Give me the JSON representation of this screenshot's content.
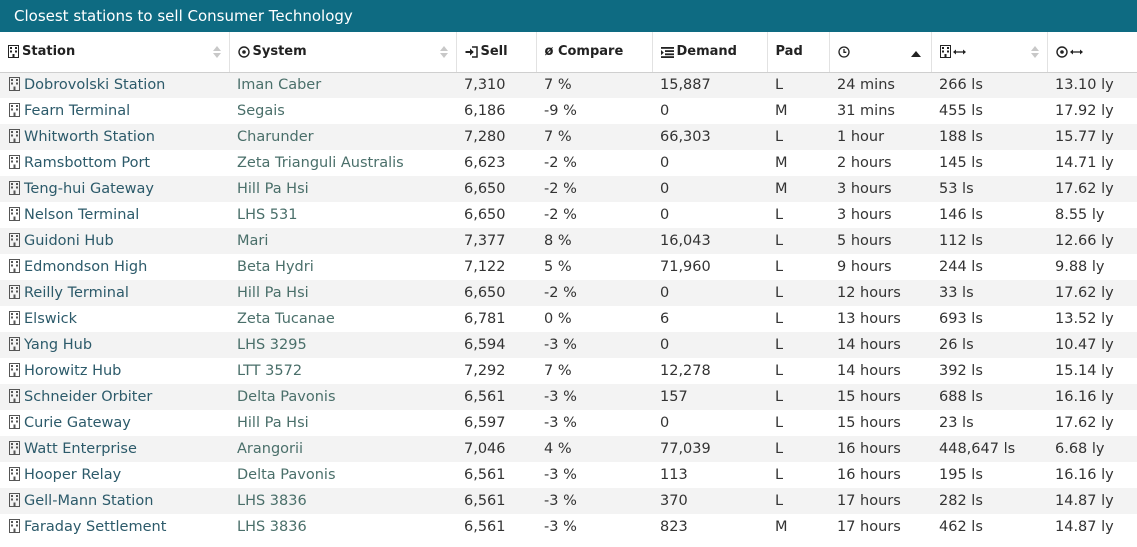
{
  "header": {
    "title": "Closest stations to sell Consumer Technology"
  },
  "icons": {
    "station": "building-icon",
    "system": "target-icon",
    "sell": "sign-in-icon",
    "demand": "list-icon",
    "age": "clock-icon",
    "distance_star": "building-arrow-icon",
    "distance_ly": "target-arrow-icon"
  },
  "columns": {
    "station": "Station",
    "system": "System",
    "sell": "Sell",
    "compare": "ø Compare",
    "demand": "Demand",
    "pad": "Pad"
  },
  "rows": [
    {
      "station": "Dobrovolski Station",
      "system": "Iman Caber",
      "sell": "7,310",
      "compare": "7 %",
      "demand": "15,887",
      "pad": "L",
      "age": "24 mins",
      "dist_star": "266 ls",
      "dist_ly": "13.10 ly"
    },
    {
      "station": "Fearn Terminal",
      "system": "Segais",
      "sell": "6,186",
      "compare": "-9 %",
      "demand": "0",
      "pad": "M",
      "age": "31 mins",
      "dist_star": "455 ls",
      "dist_ly": "17.92 ly"
    },
    {
      "station": "Whitworth Station",
      "system": "Charunder",
      "sell": "7,280",
      "compare": "7 %",
      "demand": "66,303",
      "pad": "L",
      "age": "1 hour",
      "dist_star": "188 ls",
      "dist_ly": "15.77 ly"
    },
    {
      "station": "Ramsbottom Port",
      "system": "Zeta Trianguli Australis",
      "sell": "6,623",
      "compare": "-2 %",
      "demand": "0",
      "pad": "M",
      "age": "2 hours",
      "dist_star": "145 ls",
      "dist_ly": "14.71 ly"
    },
    {
      "station": "Teng-hui Gateway",
      "system": "Hill Pa Hsi",
      "sell": "6,650",
      "compare": "-2 %",
      "demand": "0",
      "pad": "M",
      "age": "3 hours",
      "dist_star": "53 ls",
      "dist_ly": "17.62 ly"
    },
    {
      "station": "Nelson Terminal",
      "system": "LHS 531",
      "sell": "6,650",
      "compare": "-2 %",
      "demand": "0",
      "pad": "L",
      "age": "3 hours",
      "dist_star": "146 ls",
      "dist_ly": "8.55 ly"
    },
    {
      "station": "Guidoni Hub",
      "system": "Mari",
      "sell": "7,377",
      "compare": "8 %",
      "demand": "16,043",
      "pad": "L",
      "age": "5 hours",
      "dist_star": "112 ls",
      "dist_ly": "12.66 ly"
    },
    {
      "station": "Edmondson High",
      "system": "Beta Hydri",
      "sell": "7,122",
      "compare": "5 %",
      "demand": "71,960",
      "pad": "L",
      "age": "9 hours",
      "dist_star": "244 ls",
      "dist_ly": "9.88 ly"
    },
    {
      "station": "Reilly Terminal",
      "system": "Hill Pa Hsi",
      "sell": "6,650",
      "compare": "-2 %",
      "demand": "0",
      "pad": "L",
      "age": "12 hours",
      "dist_star": "33 ls",
      "dist_ly": "17.62 ly"
    },
    {
      "station": "Elswick",
      "system": "Zeta Tucanae",
      "sell": "6,781",
      "compare": "0 %",
      "demand": "6",
      "pad": "L",
      "age": "13 hours",
      "dist_star": "693 ls",
      "dist_ly": "13.52 ly"
    },
    {
      "station": "Yang Hub",
      "system": "LHS 3295",
      "sell": "6,594",
      "compare": "-3 %",
      "demand": "0",
      "pad": "L",
      "age": "14 hours",
      "dist_star": "26 ls",
      "dist_ly": "10.47 ly"
    },
    {
      "station": "Horowitz Hub",
      "system": "LTT 3572",
      "sell": "7,292",
      "compare": "7 %",
      "demand": "12,278",
      "pad": "L",
      "age": "14 hours",
      "dist_star": "392 ls",
      "dist_ly": "15.14 ly"
    },
    {
      "station": "Schneider Orbiter",
      "system": "Delta Pavonis",
      "sell": "6,561",
      "compare": "-3 %",
      "demand": "157",
      "pad": "L",
      "age": "15 hours",
      "dist_star": "688 ls",
      "dist_ly": "16.16 ly"
    },
    {
      "station": "Curie Gateway",
      "system": "Hill Pa Hsi",
      "sell": "6,597",
      "compare": "-3 %",
      "demand": "0",
      "pad": "L",
      "age": "15 hours",
      "dist_star": "23 ls",
      "dist_ly": "17.62 ly"
    },
    {
      "station": "Watt Enterprise",
      "system": "Arangorii",
      "sell": "7,046",
      "compare": "4 %",
      "demand": "77,039",
      "pad": "L",
      "age": "16 hours",
      "dist_star": "448,647 ls",
      "dist_ly": "6.68 ly"
    },
    {
      "station": "Hooper Relay",
      "system": "Delta Pavonis",
      "sell": "6,561",
      "compare": "-3 %",
      "demand": "113",
      "pad": "L",
      "age": "16 hours",
      "dist_star": "195 ls",
      "dist_ly": "16.16 ly"
    },
    {
      "station": "Gell-Mann Station",
      "system": "LHS 3836",
      "sell": "6,561",
      "compare": "-3 %",
      "demand": "370",
      "pad": "L",
      "age": "17 hours",
      "dist_star": "282 ls",
      "dist_ly": "14.87 ly"
    },
    {
      "station": "Faraday Settlement",
      "system": "LHS 3836",
      "sell": "6,561",
      "compare": "-3 %",
      "demand": "823",
      "pad": "M",
      "age": "17 hours",
      "dist_star": "462 ls",
      "dist_ly": "14.87 ly"
    }
  ]
}
